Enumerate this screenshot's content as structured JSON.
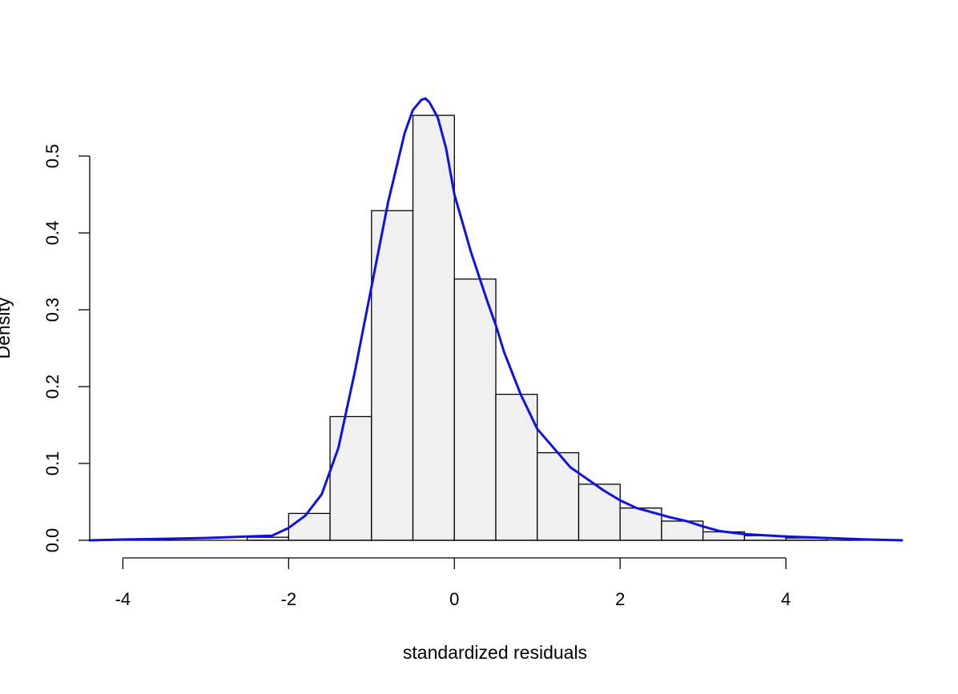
{
  "chart_data": {
    "type": "bar",
    "title": "",
    "xlabel": "standardized residuals",
    "ylabel": "Density",
    "xlim": [
      -4.4,
      5.4
    ],
    "ylim": [
      0,
      0.6
    ],
    "x_ticks": [
      -4,
      -2,
      0,
      2,
      4
    ],
    "x_tick_labels": [
      "-4",
      "-2",
      "0",
      "2",
      "4"
    ],
    "y_ticks": [
      0.0,
      0.1,
      0.2,
      0.3,
      0.4,
      0.5
    ],
    "y_tick_labels": [
      "0.0",
      "0.1",
      "0.2",
      "0.3",
      "0.4",
      "0.5"
    ],
    "grid": false,
    "histogram": {
      "bin_edges": [
        -2.5,
        -2.0,
        -1.5,
        -1.0,
        -0.5,
        0.0,
        0.5,
        1.0,
        1.5,
        2.0,
        2.5,
        3.0,
        3.5,
        4.0,
        4.5
      ],
      "densities": [
        0.004,
        0.035,
        0.161,
        0.429,
        0.553,
        0.34,
        0.19,
        0.114,
        0.073,
        0.042,
        0.025,
        0.011,
        0.006,
        0.003
      ],
      "fill_color": "#f0f0f0",
      "edge_color": "#000000"
    },
    "density_curve": {
      "color": "#1010e0",
      "x": [
        -4.4,
        -4.0,
        -3.5,
        -3.0,
        -2.5,
        -2.2,
        -2.0,
        -1.8,
        -1.6,
        -1.4,
        -1.2,
        -1.0,
        -0.8,
        -0.6,
        -0.5,
        -0.4,
        -0.35,
        -0.3,
        -0.2,
        -0.1,
        0.0,
        0.2,
        0.4,
        0.5,
        0.6,
        0.8,
        1.0,
        1.2,
        1.4,
        1.6,
        1.8,
        2.0,
        2.2,
        2.4,
        2.6,
        2.8,
        3.0,
        3.2,
        3.5,
        4.0,
        4.5,
        5.0,
        5.4
      ],
      "y": [
        0.0,
        0.001,
        0.002,
        0.003,
        0.005,
        0.006,
        0.016,
        0.032,
        0.06,
        0.12,
        0.22,
        0.33,
        0.44,
        0.53,
        0.56,
        0.573,
        0.575,
        0.57,
        0.55,
        0.51,
        0.45,
        0.375,
        0.31,
        0.28,
        0.245,
        0.19,
        0.145,
        0.12,
        0.095,
        0.08,
        0.065,
        0.052,
        0.042,
        0.036,
        0.03,
        0.025,
        0.018,
        0.012,
        0.008,
        0.005,
        0.003,
        0.001,
        0.0
      ]
    }
  }
}
